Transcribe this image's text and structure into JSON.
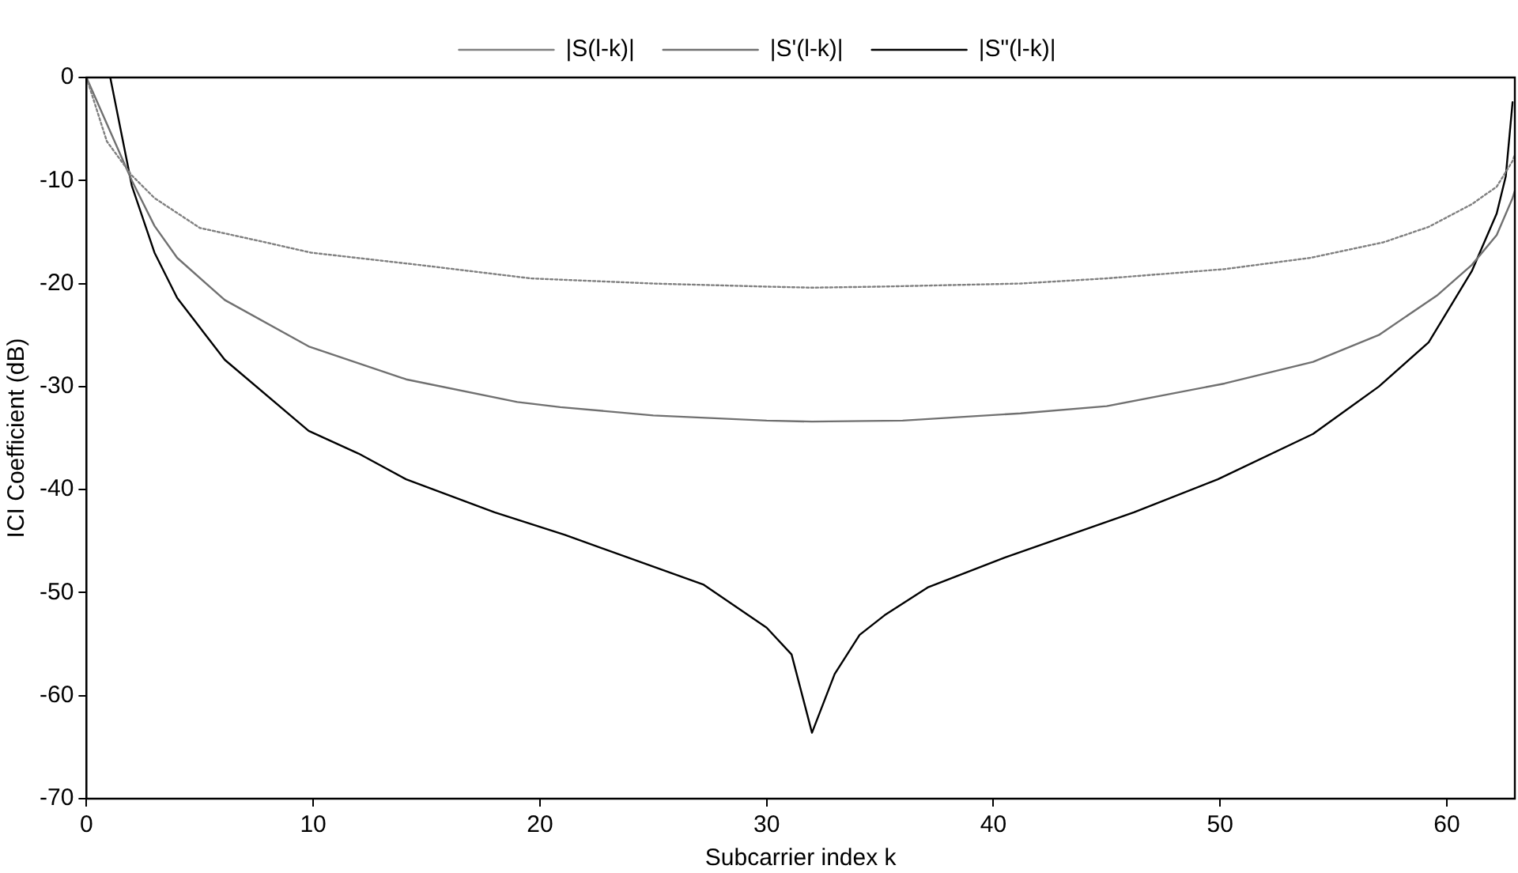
{
  "chart_data": {
    "type": "line",
    "xlabel": "Subcarrier index k",
    "ylabel": "ICI Coefficient (dB)",
    "xlim": [
      0,
      63
    ],
    "ylim": [
      -70,
      0
    ],
    "xticks": [
      0,
      10,
      20,
      30,
      40,
      50,
      60
    ],
    "yticks": [
      -70,
      -60,
      -50,
      -40,
      -30,
      -20,
      -10,
      0
    ],
    "grid": false,
    "legend": "top",
    "marker": "none",
    "series": [
      {
        "name": "|S(l-k)|",
        "color": "#808080",
        "line_style": "dotted",
        "x": [
          0,
          0.9,
          2,
          3,
          5,
          7.9,
          9.9,
          14.7,
          19.6,
          25,
          30,
          32,
          35,
          41.2,
          45,
          50.2,
          54,
          57.2,
          59.2,
          61.1,
          62.2,
          62.9,
          63
        ],
        "values": [
          0,
          -6.2,
          -9.5,
          -11.7,
          -14.6,
          -16,
          -17,
          -18.2,
          -19.5,
          -20,
          -20.3,
          -20.4,
          -20.3,
          -20,
          -19.5,
          -18.6,
          -17.5,
          -16,
          -14.5,
          -12.3,
          -10.6,
          -8.1,
          -7.5
        ]
      },
      {
        "name": "|S'(l-k)|",
        "color": "#707070",
        "x": [
          0,
          2,
          3,
          4,
          6.1,
          9.8,
          14.1,
          19,
          20.9,
          25,
          30,
          32,
          36,
          41.2,
          45,
          50.2,
          54.1,
          57,
          59.6,
          61.1,
          62.2,
          62.9,
          63
        ],
        "values": [
          0,
          -10,
          -14.4,
          -17.5,
          -21.6,
          -26.1,
          -29.3,
          -31.5,
          -32,
          -32.8,
          -33.3,
          -33.4,
          -33.3,
          -32.6,
          -31.9,
          -29.7,
          -27.6,
          -25,
          -21.1,
          -18.2,
          -15.3,
          -11.7,
          -11
        ]
      },
      {
        "name": "|S\"(l-k)|",
        "color": "#000000",
        "x": [
          1.05,
          2,
          3,
          4,
          6.1,
          9.8,
          12,
          14.1,
          18,
          21.1,
          27.2,
          30,
          31.1,
          32,
          33,
          34.1,
          35.2,
          37.1,
          40.5,
          46.2,
          49.9,
          54.1,
          57,
          59.2,
          61.1,
          62.2,
          62.6,
          62.9
        ],
        "values": [
          0,
          -10.5,
          -17,
          -21.4,
          -27.4,
          -34.3,
          -36.5,
          -39,
          -42.2,
          -44.4,
          -49.2,
          -53.4,
          -56,
          -63.6,
          -57.9,
          -54.1,
          -52.2,
          -49.5,
          -46.6,
          -42.2,
          -39,
          -34.6,
          -30,
          -25.7,
          -18.8,
          -13.2,
          -9.6,
          -2.4
        ]
      }
    ]
  }
}
